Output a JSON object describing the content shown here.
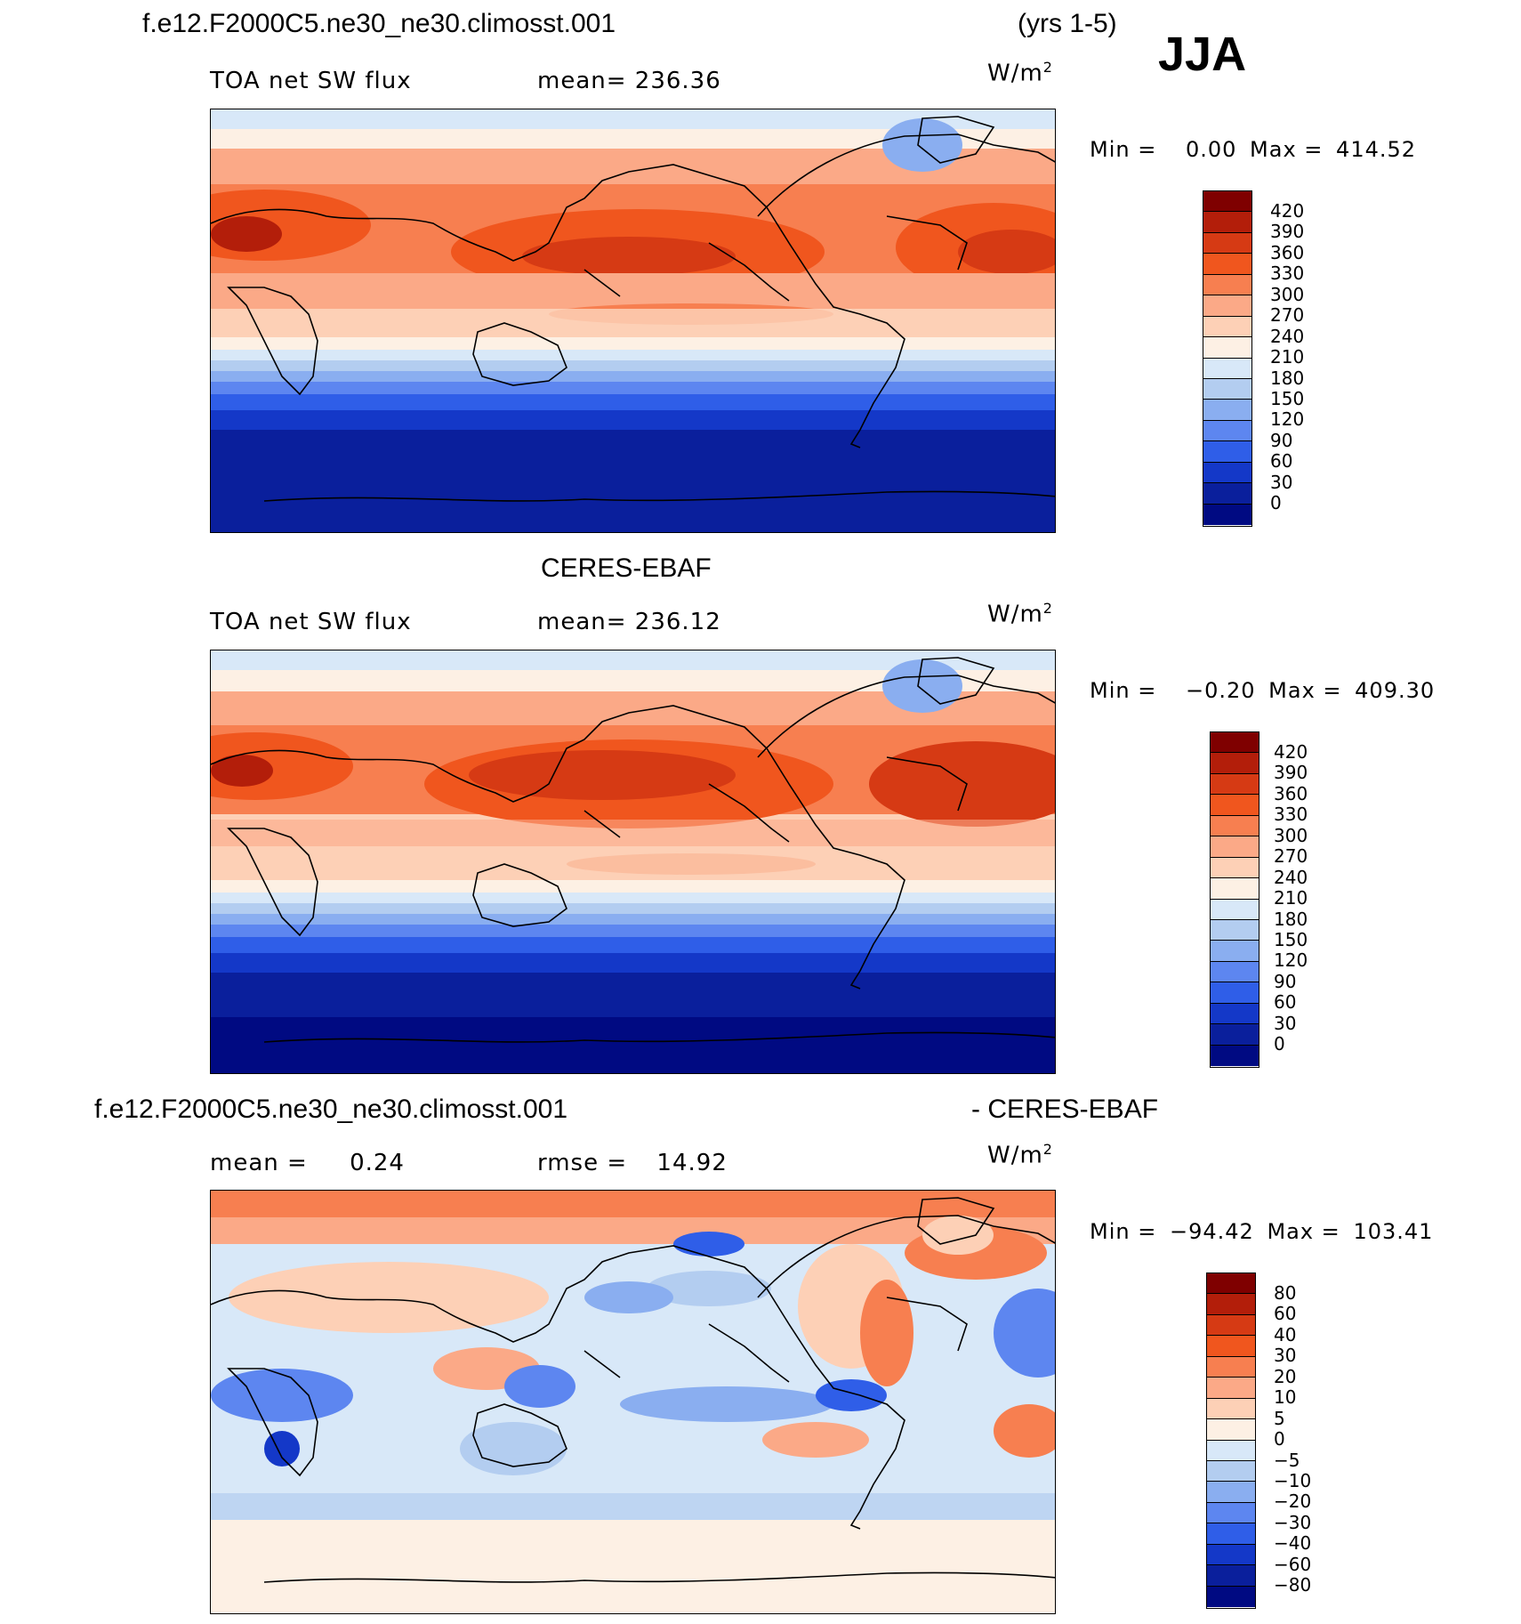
{
  "header": {
    "case_name": "f.e12.F2000C5.ne30_ne30.climosst.001",
    "years": "(yrs 1-5)",
    "season": "JJA"
  },
  "panels": [
    {
      "id": "model",
      "variable": "TOA net SW flux",
      "mean_label": "mean= 236.36",
      "units": "W/m",
      "units_sup": "2",
      "minmax_min_label": "Min =",
      "minmax_min_value": "0.00",
      "minmax_max_label": "Max =",
      "minmax_max_value": "414.52",
      "colorbar_labels": [
        "420",
        "390",
        "360",
        "330",
        "300",
        "270",
        "240",
        "210",
        "180",
        "150",
        "120",
        "90",
        "60",
        "30",
        "0"
      ]
    },
    {
      "id": "obs",
      "title": "CERES-EBAF",
      "variable": "TOA net SW flux",
      "mean_label": "mean= 236.12",
      "units": "W/m",
      "units_sup": "2",
      "minmax_min_label": "Min =",
      "minmax_min_value": "−0.20",
      "minmax_max_label": "Max =",
      "minmax_max_value": "409.30",
      "colorbar_labels": [
        "420",
        "390",
        "360",
        "330",
        "300",
        "270",
        "240",
        "210",
        "180",
        "150",
        "120",
        "90",
        "60",
        "30",
        "0"
      ]
    },
    {
      "id": "diff",
      "title_left": "f.e12.F2000C5.ne30_ne30.climosst.001",
      "title_right": "- CERES-EBAF",
      "mean_text": "mean =",
      "mean_value": "0.24",
      "rmse_text": "rmse =",
      "rmse_value": "14.92",
      "units": "W/m",
      "units_sup": "2",
      "minmax_min_label": "Min =",
      "minmax_min_value": "−94.42",
      "minmax_max_label": "Max =",
      "minmax_max_value": "103.41",
      "colorbar_labels": [
        "80",
        "60",
        "40",
        "30",
        "20",
        "10",
        "5",
        "0",
        "−5",
        "−10",
        "−20",
        "−30",
        "−40",
        "−60",
        "−80"
      ]
    }
  ],
  "colors": {
    "flux_scale": [
      "#7f0000",
      "#b31e0a",
      "#d63a14",
      "#f0561e",
      "#f77f50",
      "#fba987",
      "#fdd0b6",
      "#fdf0e4",
      "#d8e8f8",
      "#b3cdf0",
      "#8aaef0",
      "#5d86f0",
      "#2f5ee8",
      "#1438c8",
      "#0a1f9c",
      "#000a82"
    ],
    "diff_scale": [
      "#7f0000",
      "#b31e0a",
      "#d63a14",
      "#f0561e",
      "#f77f50",
      "#fba987",
      "#fdd0b6",
      "#fdf0e4",
      "#d8e8f8",
      "#b3cdf0",
      "#8aaef0",
      "#5d86f0",
      "#2f5ee8",
      "#1438c8",
      "#0a1f9c",
      "#000a82"
    ]
  }
}
